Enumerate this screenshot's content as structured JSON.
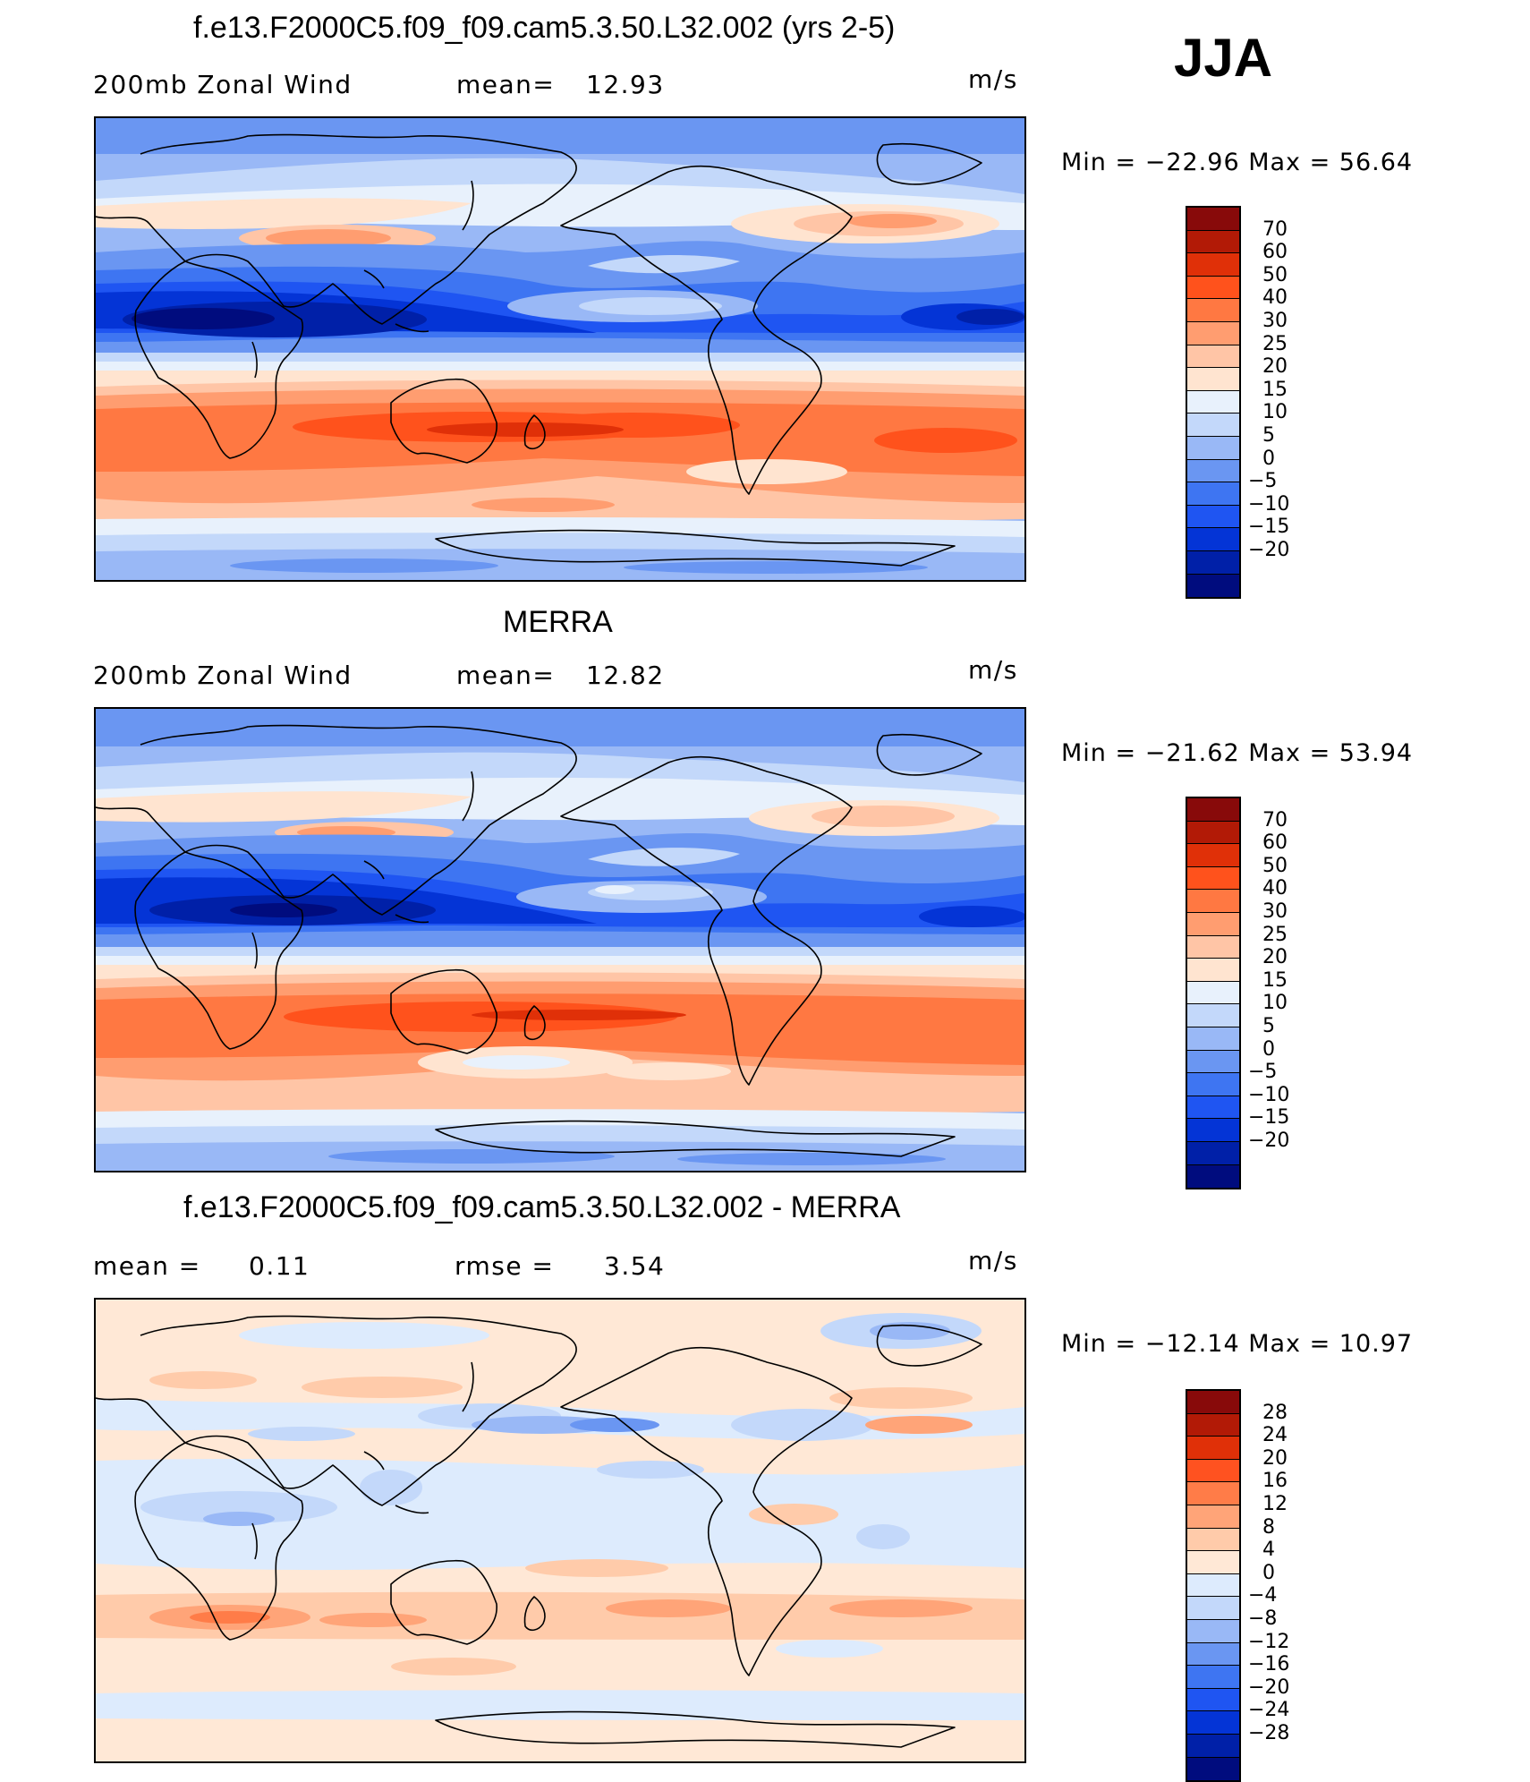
{
  "season": "JJA",
  "colors": {
    "abs_palette": [
      "#000c7e",
      "#0020a8",
      "#0434d6",
      "#1f55f2",
      "#3e75f2",
      "#6a96f2",
      "#99b8f6",
      "#c3d8fa",
      "#e8f1fc",
      "#ffe4d0",
      "#ffc5a6",
      "#ff9d70",
      "#ff7842",
      "#ff521c",
      "#e03008",
      "#b21a06",
      "#880a0a"
    ],
    "diff_palette": [
      "#000c7e",
      "#0020a8",
      "#0434d6",
      "#1f55f2",
      "#3e75f2",
      "#6a96f2",
      "#99b8f6",
      "#c3d8fa",
      "#ddebfd",
      "#ffe8d6",
      "#ffcbaa",
      "#ffa478",
      "#ff7c48",
      "#ff5220",
      "#e03008",
      "#b21a06",
      "#880a0a"
    ]
  },
  "panels": [
    {
      "title": "f.e13.F2000C5.f09_f09.cam5.3.50.L32.002 (yrs 2-5)",
      "left_label": "200mb Zonal Wind",
      "stat_label": "mean=",
      "stat_value": "12.93",
      "units": "m/s",
      "minmax": "Min  =  −22.96  Max  =    56.64",
      "colorbar_labels": [
        "70",
        "60",
        "50",
        "40",
        "30",
        "25",
        "20",
        "15",
        "10",
        "5",
        "0",
        "−5",
        "−10",
        "−15",
        "−20"
      ]
    },
    {
      "title": "MERRA",
      "left_label": "200mb Zonal Wind",
      "stat_label": "mean=",
      "stat_value": "12.82",
      "units": "m/s",
      "minmax": "Min  =  −21.62  Max  =    53.94",
      "colorbar_labels": [
        "70",
        "60",
        "50",
        "40",
        "30",
        "25",
        "20",
        "15",
        "10",
        "5",
        "0",
        "−5",
        "−10",
        "−15",
        "−20"
      ]
    },
    {
      "title": "f.e13.F2000C5.f09_f09.cam5.3.50.L32.002 - MERRA",
      "left_label": "mean  =",
      "left_value": "0.11",
      "stat_label": "rmse  =",
      "stat_value": "3.54",
      "units": "m/s",
      "minmax": "Min  =  −12.14  Max  =    10.97",
      "colorbar_labels": [
        "28",
        "24",
        "20",
        "16",
        "12",
        "8",
        "4",
        "0",
        "−4",
        "−8",
        "−12",
        "−16",
        "−20",
        "−24",
        "−28"
      ]
    }
  ]
}
